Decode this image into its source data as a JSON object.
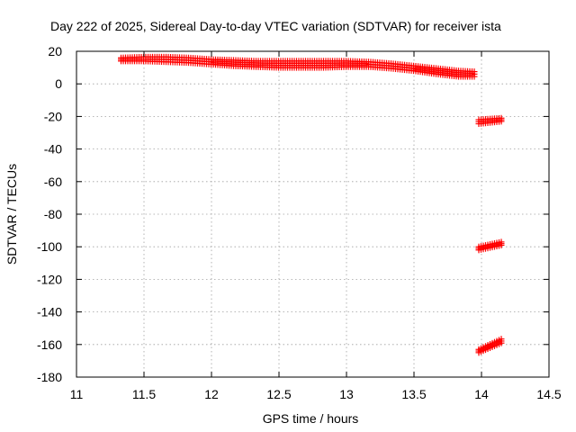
{
  "chart_data": {
    "type": "scatter",
    "title": "Day 222 of 2025, Sidereal Day-to-day VTEC variation (SDTVAR) for receiver ista",
    "xlabel": "GPS time / hours",
    "ylabel": "SDTVAR / TECUs",
    "xlim": [
      11,
      14.5
    ],
    "ylim": [
      -180,
      20
    ],
    "xticks": [
      "11",
      "11.5",
      "12",
      "12.5",
      "13",
      "13.5",
      "14",
      "14.5"
    ],
    "yticks": [
      "20",
      "0",
      "-20",
      "-40",
      "-60",
      "-80",
      "-100",
      "-120",
      "-140",
      "-160",
      "-180"
    ],
    "grid": true,
    "marker": "plus",
    "series": [
      {
        "color": "#ff0000",
        "bands": [
          {
            "x": [
              11.33,
              11.5,
              11.67,
              11.83,
              12.0,
              12.17,
              12.33,
              12.5,
              12.67,
              12.83,
              13.0,
              13.17,
              13.33,
              13.5,
              13.67,
              13.83,
              13.95
            ],
            "y_high": [
              16,
              16.5,
              16.5,
              16,
              15,
              14.5,
              14,
              14,
              14,
              14,
              14,
              13.5,
              12.5,
              11,
              9.5,
              8,
              7.5
            ],
            "y_low": [
              14,
              14,
              13.5,
              13,
              12,
              11,
              10.5,
              10,
              10,
              10,
              10.5,
              10.5,
              9.5,
              8,
              6,
              4.5,
              4.5
            ]
          },
          {
            "x": [
              13.98,
              14.15
            ],
            "y_high": [
              -22,
              -21
            ],
            "y_low": [
              -24.5,
              -23
            ]
          },
          {
            "x": [
              13.98,
              14.15
            ],
            "y_high": [
              -100,
              -97
            ],
            "y_low": [
              -102,
              -99
            ]
          },
          {
            "x": [
              13.98,
              14.15
            ],
            "y_high": [
              -163,
              -156.5
            ],
            "y_low": [
              -165,
              -159
            ]
          }
        ]
      }
    ]
  }
}
